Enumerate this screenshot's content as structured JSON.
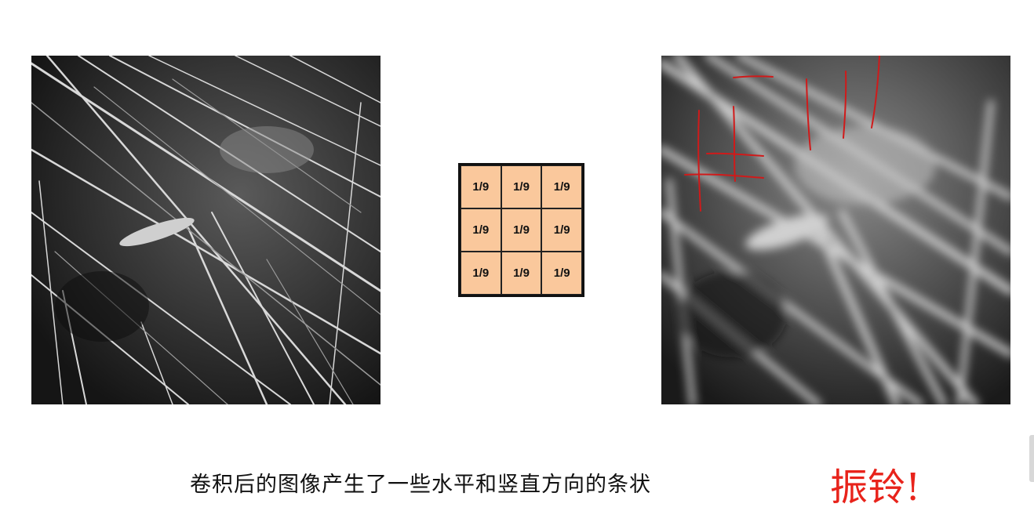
{
  "kernel": {
    "cells": [
      "1/9",
      "1/9",
      "1/9",
      "1/9",
      "1/9",
      "1/9",
      "1/9",
      "1/9",
      "1/9"
    ]
  },
  "caption": "卷积后的图像产生了一些水平和竖直方向的条状",
  "exclamation": "振铃!",
  "colors": {
    "kernel_fill": "#fac89c",
    "annotation_red": "#e8231b",
    "caption_text": "#111111"
  }
}
